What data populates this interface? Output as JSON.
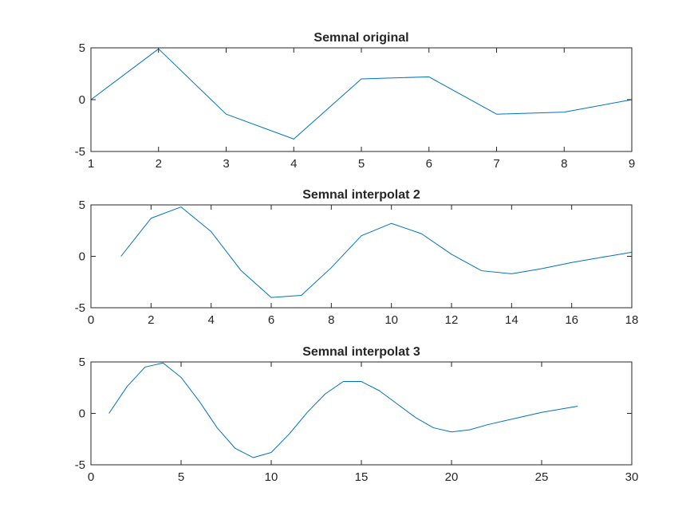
{
  "figure": {
    "background": "#ffffff",
    "axes_color": "#262626",
    "line_color": "#0072BD"
  },
  "chart_data": [
    {
      "type": "line",
      "title": "Semnal original",
      "xlabel": "",
      "ylabel": "",
      "xlim": [
        1,
        9
      ],
      "ylim": [
        -5,
        5
      ],
      "xticks": [
        1,
        2,
        3,
        4,
        5,
        6,
        7,
        8,
        9
      ],
      "yticks": [
        -5,
        0,
        5
      ],
      "grid": false,
      "x": [
        1,
        2,
        3,
        4,
        5,
        6,
        7,
        8,
        9
      ],
      "y": [
        0,
        4.9,
        -1.4,
        -3.8,
        2.0,
        2.2,
        -1.4,
        -1.2,
        0
      ]
    },
    {
      "type": "line",
      "title": "Semnal interpolat 2",
      "xlabel": "",
      "ylabel": "",
      "xlim": [
        0,
        18
      ],
      "ylim": [
        -5,
        5
      ],
      "xticks": [
        0,
        2,
        4,
        6,
        8,
        10,
        12,
        14,
        16,
        18
      ],
      "yticks": [
        -5,
        0,
        5
      ],
      "grid": false,
      "x": [
        1,
        2,
        3,
        4,
        5,
        6,
        7,
        8,
        9,
        10,
        11,
        12,
        13,
        14,
        15,
        16,
        17,
        18
      ],
      "y": [
        0,
        3.7,
        4.8,
        2.4,
        -1.4,
        -4.0,
        -3.8,
        -1.1,
        2.0,
        3.2,
        2.2,
        0.2,
        -1.4,
        -1.7,
        -1.2,
        -0.6,
        -0.1,
        0.4
      ]
    },
    {
      "type": "line",
      "title": "Semnal interpolat 3",
      "xlabel": "",
      "ylabel": "",
      "xlim": [
        0,
        30
      ],
      "ylim": [
        -5,
        5
      ],
      "xticks": [
        0,
        5,
        10,
        15,
        20,
        25,
        30
      ],
      "yticks": [
        -5,
        0,
        5
      ],
      "grid": false,
      "x": [
        1,
        2,
        3,
        4,
        5,
        6,
        7,
        8,
        9,
        10,
        11,
        12,
        13,
        14,
        15,
        16,
        17,
        18,
        19,
        20,
        21,
        22,
        23,
        24,
        25,
        26,
        27
      ],
      "y": [
        0,
        2.6,
        4.5,
        4.9,
        3.5,
        1.2,
        -1.4,
        -3.4,
        -4.3,
        -3.8,
        -2.0,
        0.1,
        1.9,
        3.1,
        3.1,
        2.2,
        0.9,
        -0.4,
        -1.4,
        -1.8,
        -1.6,
        -1.1,
        -0.7,
        -0.3,
        0.1,
        0.4,
        0.7
      ]
    }
  ]
}
